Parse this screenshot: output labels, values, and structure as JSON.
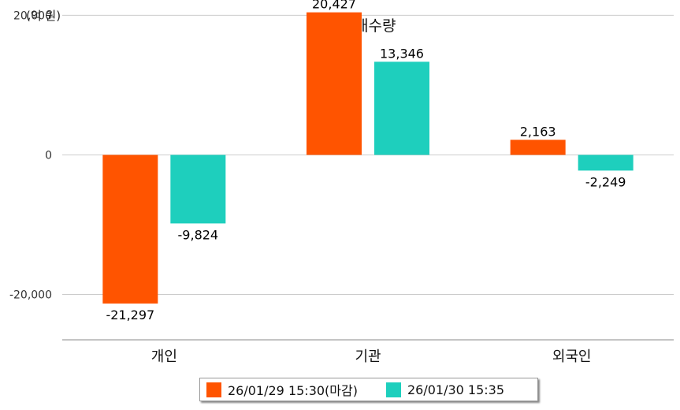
{
  "chart_data": {
    "type": "bar",
    "title": "순매수량",
    "unit_label": "(억 원)",
    "categories": [
      "개인",
      "기관",
      "외국인"
    ],
    "series": [
      {
        "name": "26/01/29 15:30(마감)",
        "color": "#ff5400",
        "values": [
          -21297,
          20427,
          2163
        ],
        "labels": [
          "-21,297",
          "20,427",
          "2,163"
        ]
      },
      {
        "name": "26/01/30 15:35",
        "color": "#1ecfbd",
        "values": [
          -9824,
          13346,
          -2249
        ],
        "labels": [
          "-9,824",
          "13,346",
          "-2,249"
        ]
      }
    ],
    "y_ticks": [
      20000,
      0,
      -20000
    ],
    "y_tick_labels": [
      "20,000",
      "0",
      "-20,000"
    ],
    "ylim": [
      -26500,
      20500
    ],
    "grid": true,
    "legend_position": "bottom"
  }
}
